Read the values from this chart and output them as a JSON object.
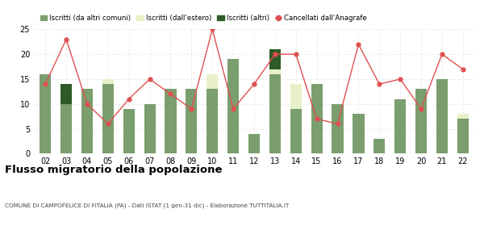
{
  "years": [
    "02",
    "03",
    "04",
    "05",
    "06",
    "07",
    "08",
    "09",
    "10",
    "11",
    "12",
    "13",
    "14",
    "15",
    "16",
    "17",
    "18",
    "19",
    "20",
    "21",
    "22"
  ],
  "iscritti_altri_comuni": [
    16,
    10,
    13,
    14,
    9,
    10,
    13,
    13,
    13,
    19,
    4,
    16,
    9,
    14,
    10,
    8,
    3,
    11,
    13,
    15,
    7
  ],
  "iscritti_estero": [
    0,
    0,
    0,
    1,
    0,
    0,
    0,
    0,
    3,
    0,
    0,
    1,
    5,
    0,
    0,
    0,
    0,
    0,
    0,
    0,
    1
  ],
  "iscritti_altri": [
    0,
    4,
    0,
    0,
    0,
    0,
    0,
    0,
    0,
    0,
    0,
    4,
    0,
    0,
    0,
    0,
    0,
    0,
    0,
    0,
    0
  ],
  "cancellati": [
    14,
    23,
    10,
    6,
    11,
    15,
    12,
    9,
    25,
    9,
    14,
    20,
    20,
    7,
    6,
    22,
    14,
    15,
    9,
    20,
    17
  ],
  "color_altri_comuni": "#7a9e6e",
  "color_estero": "#e8f0c8",
  "color_altri": "#2d5a27",
  "color_cancellati": "#e05050",
  "ylim": [
    0,
    25
  ],
  "yticks": [
    0,
    5,
    10,
    15,
    20,
    25
  ],
  "title": "Flusso migratorio della popolazione",
  "subtitle": "COMUNE DI CAMPOFELICE DI FITALIA (PA) - Dati ISTAT (1 gen-31 dic) - Elaborazione TUTTITALIA.IT",
  "legend_labels": [
    "Iscritti (da altri comuni)",
    "Iscritti (dall'estero)",
    "Iscritti (altri)",
    "Cancellati dall'Anagrafe"
  ],
  "background_color": "#ffffff",
  "grid_color": "#d0d0d0"
}
